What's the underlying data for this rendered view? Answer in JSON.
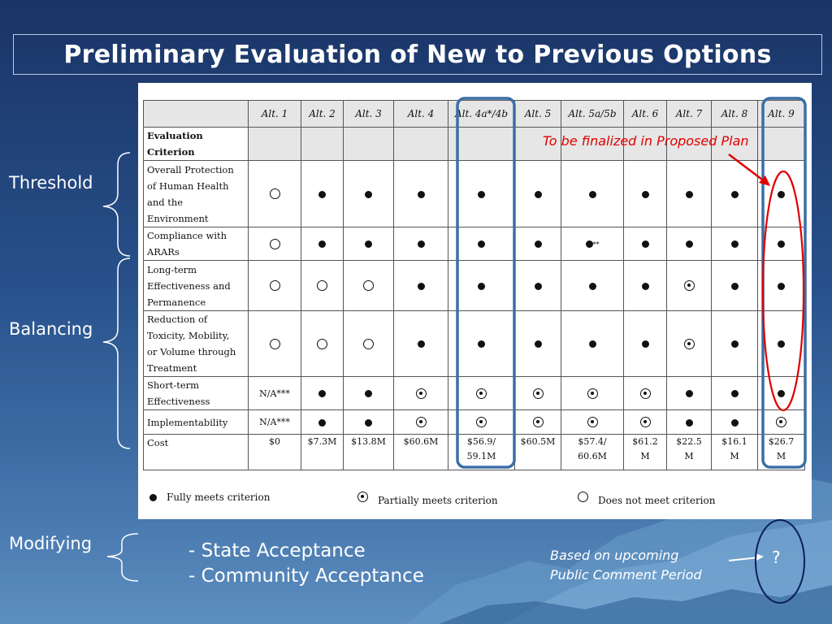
{
  "slide": {
    "title": "Preliminary Evaluation of New to Previous Options",
    "side_labels": {
      "threshold": "Threshold",
      "balancing": "Balancing",
      "modifying": "Modifying"
    },
    "annotation_red": "To be finalized in Proposed Plan",
    "modifying_items": [
      "- State Acceptance",
      "- Community Acceptance"
    ],
    "upcoming_note": [
      "Based on upcoming",
      "Public Comment Period"
    ],
    "question_mark": "?"
  },
  "table": {
    "headers": [
      "",
      "Alt. 1",
      "Alt. 2",
      "Alt. 3",
      "Alt. 4",
      "Alt. 4a*/4b",
      "Alt. 5",
      "Alt. 5a/5b",
      "Alt. 6",
      "Alt. 7",
      "Alt. 8",
      "Alt. 9"
    ],
    "subheader": [
      "Evaluation",
      "Criterion"
    ],
    "rows": [
      {
        "criterion": [
          "Overall Protection",
          "of Human Health",
          "and the",
          "Environment"
        ],
        "cells": [
          "empty",
          "full",
          "full",
          "full",
          "full",
          "full",
          "full",
          "full",
          "full",
          "full",
          "full"
        ]
      },
      {
        "criterion": [
          "Compliance with",
          "ARARs"
        ],
        "cells": [
          "empty",
          "full",
          "full",
          "full",
          "full",
          "full",
          "full**",
          "full",
          "full",
          "full",
          "full"
        ]
      },
      {
        "criterion": [
          "Long-term",
          "Effectiveness and",
          "Permanence"
        ],
        "cells": [
          "empty",
          "empty",
          "empty",
          "full",
          "full",
          "full",
          "full",
          "full",
          "partial",
          "full",
          "full"
        ]
      },
      {
        "criterion": [
          "Reduction of",
          "Toxicity, Mobility,",
          "or Volume through",
          "Treatment"
        ],
        "cells": [
          "empty",
          "empty",
          "empty",
          "full",
          "full",
          "full",
          "full",
          "full",
          "partial",
          "full",
          "full"
        ]
      },
      {
        "criterion": [
          "Short-term",
          "Effectiveness"
        ],
        "cells": [
          "N/A***",
          "full",
          "full",
          "partial",
          "partial",
          "partial",
          "partial",
          "partial",
          "full",
          "full",
          "full"
        ]
      },
      {
        "criterion": [
          "Implementability"
        ],
        "cells": [
          "N/A***",
          "full",
          "full",
          "partial",
          "partial",
          "partial",
          "partial",
          "partial",
          "full",
          "full",
          "partial"
        ]
      }
    ],
    "cost_label": "Cost",
    "costs": [
      [
        "$0"
      ],
      [
        "$7.3M"
      ],
      [
        "$13.8M"
      ],
      [
        "$60.6M"
      ],
      [
        "$56.9/",
        "59.1M"
      ],
      [
        "$60.5M"
      ],
      [
        "$57.4/",
        "60.6M"
      ],
      [
        "$61.2",
        "M"
      ],
      [
        "$22.5",
        "M"
      ],
      [
        "$16.1",
        "M"
      ],
      [
        "$26.7",
        "M"
      ]
    ]
  },
  "legend": {
    "full": "Fully meets criterion",
    "partial": "Partially meets criterion",
    "empty": "Does not meet criterion"
  },
  "colors": {
    "highlight_box": "#3a6fa5",
    "annotation_red": "#e00000",
    "oval_navy": "#0b1f5c"
  }
}
